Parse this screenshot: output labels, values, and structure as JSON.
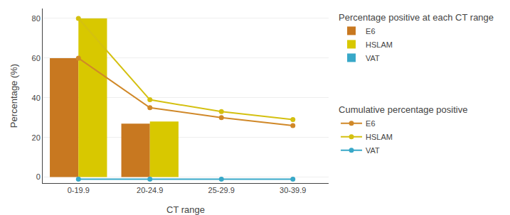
{
  "chart_data": {
    "type": "bar",
    "categories": [
      "0-19.9",
      "20-24.9",
      "25-29.9",
      "30-39.9"
    ],
    "xlabel": "CT range",
    "ylabel": "Percentage (%)",
    "ylim": [
      -3,
      85
    ],
    "yticks": [
      0,
      20,
      40,
      60,
      80
    ],
    "grid": true,
    "legend": "right",
    "legend_titles": [
      "Percentage positive at each CT range",
      "Cumulative percentage positive"
    ],
    "series": [
      {
        "name": "E6",
        "type": "bar",
        "color": "#C87820",
        "values": [
          60,
          27,
          0,
          0
        ]
      },
      {
        "name": "HSLAM",
        "type": "bar",
        "color": "#D8C800",
        "values": [
          80,
          28,
          0,
          0
        ]
      },
      {
        "name": "VAT",
        "type": "bar",
        "color": "#38A8C8",
        "values": [
          null,
          null,
          null,
          null
        ]
      },
      {
        "name": "E6",
        "type": "line",
        "color": "#D08828",
        "marker": "circle",
        "values": [
          60,
          35,
          30,
          26
        ]
      },
      {
        "name": "HSLAM",
        "type": "line",
        "color": "#D4C010",
        "marker": "circle",
        "values": [
          80,
          39,
          33,
          29
        ]
      },
      {
        "name": "VAT",
        "type": "line",
        "color": "#38A8C8",
        "marker": "circle",
        "values": [
          -1,
          -1,
          -1,
          -1
        ]
      }
    ]
  }
}
